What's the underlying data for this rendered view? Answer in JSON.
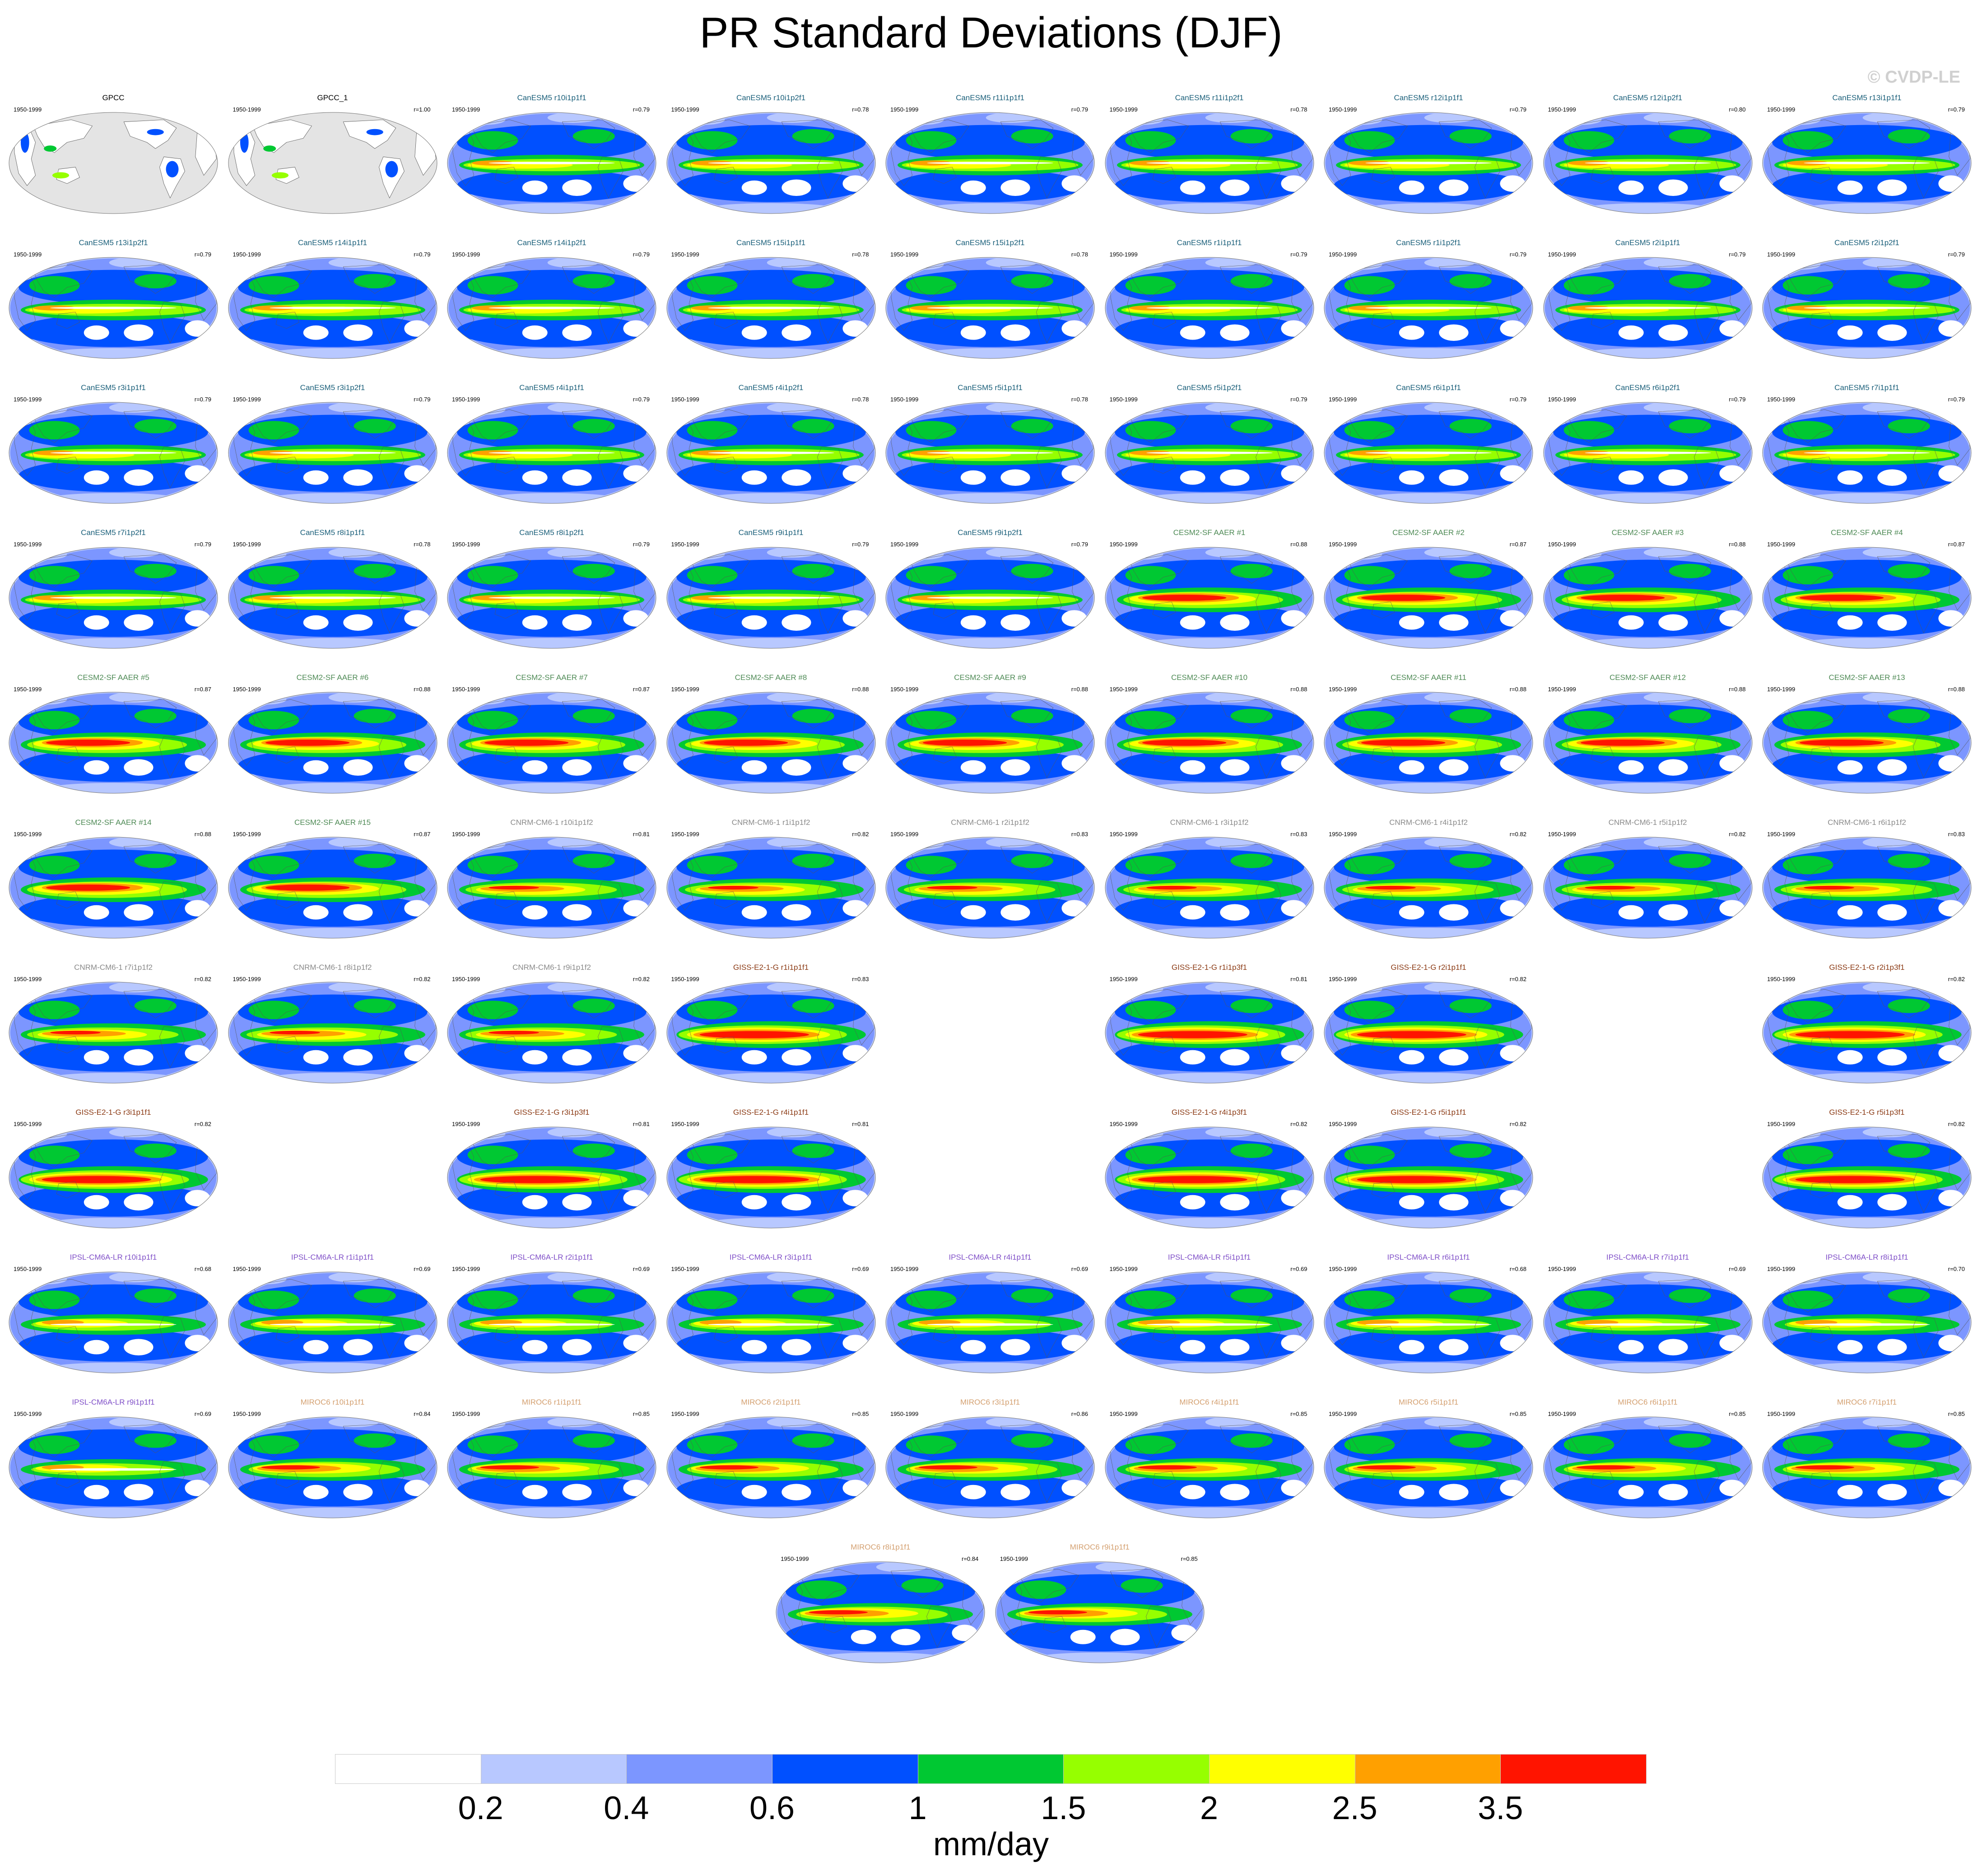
{
  "page": {
    "title": "PR Standard Deviations (DJF)",
    "watermark": "© CVDP-LE"
  },
  "colors": {
    "fill_scale": [
      "#ffffff",
      "#b8c8ff",
      "#7c96ff",
      "#0050ff",
      "#00c832",
      "#96ff00",
      "#ffff00",
      "#ffa000",
      "#ff1400"
    ],
    "land_obs": "#e4e4e4",
    "coast": "#555555",
    "model_families": {
      "GPCC": "#000000",
      "CanESM5": "#1a5f7a",
      "CESM2-SF AAER": "#4e8a55",
      "CNRM-CM6-1": "#8a8a8a",
      "GISS-E2-1-G": "#8b3a14",
      "IPSL-CM6A-LR": "#8050c8",
      "MIROC6": "#d4a070"
    }
  },
  "chart_data": {
    "type": "map-grid",
    "period": "1950-1999",
    "panels": [
      {
        "title": "GPCC",
        "family": "GPCC",
        "period": "1950-1999",
        "r": "",
        "row": 0,
        "col": 0,
        "pattern": "obs"
      },
      {
        "title": "GPCC_1",
        "family": "GPCC",
        "period": "1950-1999",
        "r": "r=1.00",
        "row": 0,
        "col": 1,
        "pattern": "obs"
      },
      {
        "title": "CanESM5 r10i1p1f1",
        "family": "CanESM5",
        "period": "1950-1999",
        "r": "r=0.79",
        "row": 0,
        "col": 2,
        "pattern": "can"
      },
      {
        "title": "CanESM5 r10i1p2f1",
        "family": "CanESM5",
        "period": "1950-1999",
        "r": "r=0.78",
        "row": 0,
        "col": 3,
        "pattern": "can"
      },
      {
        "title": "CanESM5 r11i1p1f1",
        "family": "CanESM5",
        "period": "1950-1999",
        "r": "r=0.79",
        "row": 0,
        "col": 4,
        "pattern": "can"
      },
      {
        "title": "CanESM5 r11i1p2f1",
        "family": "CanESM5",
        "period": "1950-1999",
        "r": "r=0.78",
        "row": 0,
        "col": 5,
        "pattern": "can"
      },
      {
        "title": "CanESM5 r12i1p1f1",
        "family": "CanESM5",
        "period": "1950-1999",
        "r": "r=0.79",
        "row": 0,
        "col": 6,
        "pattern": "can"
      },
      {
        "title": "CanESM5 r12i1p2f1",
        "family": "CanESM5",
        "period": "1950-1999",
        "r": "r=0.80",
        "row": 0,
        "col": 7,
        "pattern": "can"
      },
      {
        "title": "CanESM5 r13i1p1f1",
        "family": "CanESM5",
        "period": "1950-1999",
        "r": "r=0.79",
        "row": 0,
        "col": 8,
        "pattern": "can"
      },
      {
        "title": "CanESM5 r13i1p2f1",
        "family": "CanESM5",
        "period": "1950-1999",
        "r": "r=0.79",
        "row": 1,
        "col": 0,
        "pattern": "can"
      },
      {
        "title": "CanESM5 r14i1p1f1",
        "family": "CanESM5",
        "period": "1950-1999",
        "r": "r=0.79",
        "row": 1,
        "col": 1,
        "pattern": "can"
      },
      {
        "title": "CanESM5 r14i1p2f1",
        "family": "CanESM5",
        "period": "1950-1999",
        "r": "r=0.79",
        "row": 1,
        "col": 2,
        "pattern": "can"
      },
      {
        "title": "CanESM5 r15i1p1f1",
        "family": "CanESM5",
        "period": "1950-1999",
        "r": "r=0.78",
        "row": 1,
        "col": 3,
        "pattern": "can"
      },
      {
        "title": "CanESM5 r15i1p2f1",
        "family": "CanESM5",
        "period": "1950-1999",
        "r": "r=0.78",
        "row": 1,
        "col": 4,
        "pattern": "can"
      },
      {
        "title": "CanESM5 r1i1p1f1",
        "family": "CanESM5",
        "period": "1950-1999",
        "r": "r=0.79",
        "row": 1,
        "col": 5,
        "pattern": "can"
      },
      {
        "title": "CanESM5 r1i1p2f1",
        "family": "CanESM5",
        "period": "1950-1999",
        "r": "r=0.79",
        "row": 1,
        "col": 6,
        "pattern": "can"
      },
      {
        "title": "CanESM5 r2i1p1f1",
        "family": "CanESM5",
        "period": "1950-1999",
        "r": "r=0.79",
        "row": 1,
        "col": 7,
        "pattern": "can"
      },
      {
        "title": "CanESM5 r2i1p2f1",
        "family": "CanESM5",
        "period": "1950-1999",
        "r": "r=0.79",
        "row": 1,
        "col": 8,
        "pattern": "can"
      },
      {
        "title": "CanESM5 r3i1p1f1",
        "family": "CanESM5",
        "period": "1950-1999",
        "r": "r=0.79",
        "row": 2,
        "col": 0,
        "pattern": "can"
      },
      {
        "title": "CanESM5 r3i1p2f1",
        "family": "CanESM5",
        "period": "1950-1999",
        "r": "r=0.79",
        "row": 2,
        "col": 1,
        "pattern": "can"
      },
      {
        "title": "CanESM5 r4i1p1f1",
        "family": "CanESM5",
        "period": "1950-1999",
        "r": "r=0.79",
        "row": 2,
        "col": 2,
        "pattern": "can"
      },
      {
        "title": "CanESM5 r4i1p2f1",
        "family": "CanESM5",
        "period": "1950-1999",
        "r": "r=0.78",
        "row": 2,
        "col": 3,
        "pattern": "can"
      },
      {
        "title": "CanESM5 r5i1p1f1",
        "family": "CanESM5",
        "period": "1950-1999",
        "r": "r=0.78",
        "row": 2,
        "col": 4,
        "pattern": "can"
      },
      {
        "title": "CanESM5 r5i1p2f1",
        "family": "CanESM5",
        "period": "1950-1999",
        "r": "r=0.79",
        "row": 2,
        "col": 5,
        "pattern": "can"
      },
      {
        "title": "CanESM5 r6i1p1f1",
        "family": "CanESM5",
        "period": "1950-1999",
        "r": "r=0.79",
        "row": 2,
        "col": 6,
        "pattern": "can"
      },
      {
        "title": "CanESM5 r6i1p2f1",
        "family": "CanESM5",
        "period": "1950-1999",
        "r": "r=0.79",
        "row": 2,
        "col": 7,
        "pattern": "can"
      },
      {
        "title": "CanESM5 r7i1p1f1",
        "family": "CanESM5",
        "period": "1950-1999",
        "r": "r=0.79",
        "row": 2,
        "col": 8,
        "pattern": "can"
      },
      {
        "title": "CanESM5 r7i1p2f1",
        "family": "CanESM5",
        "period": "1950-1999",
        "r": "r=0.79",
        "row": 3,
        "col": 0,
        "pattern": "can"
      },
      {
        "title": "CanESM5 r8i1p1f1",
        "family": "CanESM5",
        "period": "1950-1999",
        "r": "r=0.78",
        "row": 3,
        "col": 1,
        "pattern": "can"
      },
      {
        "title": "CanESM5 r8i1p2f1",
        "family": "CanESM5",
        "period": "1950-1999",
        "r": "r=0.79",
        "row": 3,
        "col": 2,
        "pattern": "can"
      },
      {
        "title": "CanESM5 r9i1p1f1",
        "family": "CanESM5",
        "period": "1950-1999",
        "r": "r=0.79",
        "row": 3,
        "col": 3,
        "pattern": "can"
      },
      {
        "title": "CanESM5 r9i1p2f1",
        "family": "CanESM5",
        "period": "1950-1999",
        "r": "r=0.79",
        "row": 3,
        "col": 4,
        "pattern": "can"
      },
      {
        "title": "CESM2-SF AAER #1",
        "family": "CESM2-SF AAER",
        "period": "1950-1999",
        "r": "r=0.88",
        "row": 3,
        "col": 5,
        "pattern": "cesm"
      },
      {
        "title": "CESM2-SF AAER #2",
        "family": "CESM2-SF AAER",
        "period": "1950-1999",
        "r": "r=0.87",
        "row": 3,
        "col": 6,
        "pattern": "cesm"
      },
      {
        "title": "CESM2-SF AAER #3",
        "family": "CESM2-SF AAER",
        "period": "1950-1999",
        "r": "r=0.88",
        "row": 3,
        "col": 7,
        "pattern": "cesm"
      },
      {
        "title": "CESM2-SF AAER #4",
        "family": "CESM2-SF AAER",
        "period": "1950-1999",
        "r": "r=0.87",
        "row": 3,
        "col": 8,
        "pattern": "cesm"
      },
      {
        "title": "CESM2-SF AAER #5",
        "family": "CESM2-SF AAER",
        "period": "1950-1999",
        "r": "r=0.87",
        "row": 4,
        "col": 0,
        "pattern": "cesm"
      },
      {
        "title": "CESM2-SF AAER #6",
        "family": "CESM2-SF AAER",
        "period": "1950-1999",
        "r": "r=0.88",
        "row": 4,
        "col": 1,
        "pattern": "cesm"
      },
      {
        "title": "CESM2-SF AAER #7",
        "family": "CESM2-SF AAER",
        "period": "1950-1999",
        "r": "r=0.87",
        "row": 4,
        "col": 2,
        "pattern": "cesm"
      },
      {
        "title": "CESM2-SF AAER #8",
        "family": "CESM2-SF AAER",
        "period": "1950-1999",
        "r": "r=0.88",
        "row": 4,
        "col": 3,
        "pattern": "cesm"
      },
      {
        "title": "CESM2-SF AAER #9",
        "family": "CESM2-SF AAER",
        "period": "1950-1999",
        "r": "r=0.88",
        "row": 4,
        "col": 4,
        "pattern": "cesm"
      },
      {
        "title": "CESM2-SF AAER #10",
        "family": "CESM2-SF AAER",
        "period": "1950-1999",
        "r": "r=0.88",
        "row": 4,
        "col": 5,
        "pattern": "cesm"
      },
      {
        "title": "CESM2-SF AAER #11",
        "family": "CESM2-SF AAER",
        "period": "1950-1999",
        "r": "r=0.88",
        "row": 4,
        "col": 6,
        "pattern": "cesm"
      },
      {
        "title": "CESM2-SF AAER #12",
        "family": "CESM2-SF AAER",
        "period": "1950-1999",
        "r": "r=0.88",
        "row": 4,
        "col": 7,
        "pattern": "cesm"
      },
      {
        "title": "CESM2-SF AAER #13",
        "family": "CESM2-SF AAER",
        "period": "1950-1999",
        "r": "r=0.88",
        "row": 4,
        "col": 8,
        "pattern": "cesm"
      },
      {
        "title": "CESM2-SF AAER #14",
        "family": "CESM2-SF AAER",
        "period": "1950-1999",
        "r": "r=0.88",
        "row": 5,
        "col": 0,
        "pattern": "cesm"
      },
      {
        "title": "CESM2-SF AAER #15",
        "family": "CESM2-SF AAER",
        "period": "1950-1999",
        "r": "r=0.87",
        "row": 5,
        "col": 1,
        "pattern": "cesm"
      },
      {
        "title": "CNRM-CM6-1 r10i1p1f2",
        "family": "CNRM-CM6-1",
        "period": "1950-1999",
        "r": "r=0.81",
        "row": 5,
        "col": 2,
        "pattern": "cnrm"
      },
      {
        "title": "CNRM-CM6-1 r1i1p1f2",
        "family": "CNRM-CM6-1",
        "period": "1950-1999",
        "r": "r=0.82",
        "row": 5,
        "col": 3,
        "pattern": "cnrm"
      },
      {
        "title": "CNRM-CM6-1 r2i1p1f2",
        "family": "CNRM-CM6-1",
        "period": "1950-1999",
        "r": "r=0.83",
        "row": 5,
        "col": 4,
        "pattern": "cnrm"
      },
      {
        "title": "CNRM-CM6-1 r3i1p1f2",
        "family": "CNRM-CM6-1",
        "period": "1950-1999",
        "r": "r=0.83",
        "row": 5,
        "col": 5,
        "pattern": "cnrm"
      },
      {
        "title": "CNRM-CM6-1 r4i1p1f2",
        "family": "CNRM-CM6-1",
        "period": "1950-1999",
        "r": "r=0.82",
        "row": 5,
        "col": 6,
        "pattern": "cnrm"
      },
      {
        "title": "CNRM-CM6-1 r5i1p1f2",
        "family": "CNRM-CM6-1",
        "period": "1950-1999",
        "r": "r=0.82",
        "row": 5,
        "col": 7,
        "pattern": "cnrm"
      },
      {
        "title": "CNRM-CM6-1 r6i1p1f2",
        "family": "CNRM-CM6-1",
        "period": "1950-1999",
        "r": "r=0.83",
        "row": 5,
        "col": 8,
        "pattern": "cnrm"
      },
      {
        "title": "CNRM-CM6-1 r7i1p1f2",
        "family": "CNRM-CM6-1",
        "period": "1950-1999",
        "r": "r=0.82",
        "row": 6,
        "col": 0,
        "pattern": "cnrm"
      },
      {
        "title": "CNRM-CM6-1 r8i1p1f2",
        "family": "CNRM-CM6-1",
        "period": "1950-1999",
        "r": "r=0.82",
        "row": 6,
        "col": 1,
        "pattern": "cnrm"
      },
      {
        "title": "CNRM-CM6-1 r9i1p1f2",
        "family": "CNRM-CM6-1",
        "period": "1950-1999",
        "r": "r=0.82",
        "row": 6,
        "col": 2,
        "pattern": "cnrm"
      },
      {
        "title": "GISS-E2-1-G r1i1p1f1",
        "family": "GISS-E2-1-G",
        "period": "1950-1999",
        "r": "r=0.83",
        "row": 6,
        "col": 3,
        "pattern": "giss"
      },
      {
        "title": "GISS-E2-1-G r1i1p3f1",
        "family": "GISS-E2-1-G",
        "period": "1950-1999",
        "r": "r=0.81",
        "row": 6,
        "col": 5,
        "pattern": "giss"
      },
      {
        "title": "GISS-E2-1-G r2i1p1f1",
        "family": "GISS-E2-1-G",
        "period": "1950-1999",
        "r": "r=0.82",
        "row": 6,
        "col": 6,
        "pattern": "giss"
      },
      {
        "title": "GISS-E2-1-G r2i1p3f1",
        "family": "GISS-E2-1-G",
        "period": "1950-1999",
        "r": "r=0.82",
        "row": 6,
        "col": 8,
        "pattern": "giss"
      },
      {
        "title": "GISS-E2-1-G r3i1p1f1",
        "family": "GISS-E2-1-G",
        "period": "1950-1999",
        "r": "r=0.82",
        "row": 7,
        "col": 0,
        "pattern": "giss"
      },
      {
        "title": "GISS-E2-1-G r3i1p3f1",
        "family": "GISS-E2-1-G",
        "period": "1950-1999",
        "r": "r=0.81",
        "row": 7,
        "col": 2,
        "pattern": "giss"
      },
      {
        "title": "GISS-E2-1-G r4i1p1f1",
        "family": "GISS-E2-1-G",
        "period": "1950-1999",
        "r": "r=0.81",
        "row": 7,
        "col": 3,
        "pattern": "giss"
      },
      {
        "title": "GISS-E2-1-G r4i1p3f1",
        "family": "GISS-E2-1-G",
        "period": "1950-1999",
        "r": "r=0.82",
        "row": 7,
        "col": 5,
        "pattern": "giss"
      },
      {
        "title": "GISS-E2-1-G r5i1p1f1",
        "family": "GISS-E2-1-G",
        "period": "1950-1999",
        "r": "r=0.82",
        "row": 7,
        "col": 6,
        "pattern": "giss"
      },
      {
        "title": "GISS-E2-1-G r5i1p3f1",
        "family": "GISS-E2-1-G",
        "period": "1950-1999",
        "r": "r=0.82",
        "row": 7,
        "col": 8,
        "pattern": "giss"
      },
      {
        "title": "IPSL-CM6A-LR r10i1p1f1",
        "family": "IPSL-CM6A-LR",
        "period": "1950-1999",
        "r": "r=0.68",
        "row": 8,
        "col": 0,
        "pattern": "ipsl"
      },
      {
        "title": "IPSL-CM6A-LR r1i1p1f1",
        "family": "IPSL-CM6A-LR",
        "period": "1950-1999",
        "r": "r=0.69",
        "row": 8,
        "col": 1,
        "pattern": "ipsl"
      },
      {
        "title": "IPSL-CM6A-LR r2i1p1f1",
        "family": "IPSL-CM6A-LR",
        "period": "1950-1999",
        "r": "r=0.69",
        "row": 8,
        "col": 2,
        "pattern": "ipsl"
      },
      {
        "title": "IPSL-CM6A-LR r3i1p1f1",
        "family": "IPSL-CM6A-LR",
        "period": "1950-1999",
        "r": "r=0.69",
        "row": 8,
        "col": 3,
        "pattern": "ipsl"
      },
      {
        "title": "IPSL-CM6A-LR r4i1p1f1",
        "family": "IPSL-CM6A-LR",
        "period": "1950-1999",
        "r": "r=0.69",
        "row": 8,
        "col": 4,
        "pattern": "ipsl"
      },
      {
        "title": "IPSL-CM6A-LR r5i1p1f1",
        "family": "IPSL-CM6A-LR",
        "period": "1950-1999",
        "r": "r=0.69",
        "row": 8,
        "col": 5,
        "pattern": "ipsl"
      },
      {
        "title": "IPSL-CM6A-LR r6i1p1f1",
        "family": "IPSL-CM6A-LR",
        "period": "1950-1999",
        "r": "r=0.68",
        "row": 8,
        "col": 6,
        "pattern": "ipsl"
      },
      {
        "title": "IPSL-CM6A-LR r7i1p1f1",
        "family": "IPSL-CM6A-LR",
        "period": "1950-1999",
        "r": "r=0.69",
        "row": 8,
        "col": 7,
        "pattern": "ipsl"
      },
      {
        "title": "IPSL-CM6A-LR r8i1p1f1",
        "family": "IPSL-CM6A-LR",
        "period": "1950-1999",
        "r": "r=0.70",
        "row": 8,
        "col": 8,
        "pattern": "ipsl"
      },
      {
        "title": "IPSL-CM6A-LR r9i1p1f1",
        "family": "IPSL-CM6A-LR",
        "period": "1950-1999",
        "r": "r=0.69",
        "row": 9,
        "col": 0,
        "pattern": "ipsl"
      },
      {
        "title": "MIROC6 r10i1p1f1",
        "family": "MIROC6",
        "period": "1950-1999",
        "r": "r=0.84",
        "row": 9,
        "col": 1,
        "pattern": "miroc"
      },
      {
        "title": "MIROC6 r1i1p1f1",
        "family": "MIROC6",
        "period": "1950-1999",
        "r": "r=0.85",
        "row": 9,
        "col": 2,
        "pattern": "miroc"
      },
      {
        "title": "MIROC6 r2i1p1f1",
        "family": "MIROC6",
        "period": "1950-1999",
        "r": "r=0.85",
        "row": 9,
        "col": 3,
        "pattern": "miroc"
      },
      {
        "title": "MIROC6 r3i1p1f1",
        "family": "MIROC6",
        "period": "1950-1999",
        "r": "r=0.86",
        "row": 9,
        "col": 4,
        "pattern": "miroc"
      },
      {
        "title": "MIROC6 r4i1p1f1",
        "family": "MIROC6",
        "period": "1950-1999",
        "r": "r=0.85",
        "row": 9,
        "col": 5,
        "pattern": "miroc"
      },
      {
        "title": "MIROC6 r5i1p1f1",
        "family": "MIROC6",
        "period": "1950-1999",
        "r": "r=0.85",
        "row": 9,
        "col": 6,
        "pattern": "miroc"
      },
      {
        "title": "MIROC6 r6i1p1f1",
        "family": "MIROC6",
        "period": "1950-1999",
        "r": "r=0.85",
        "row": 9,
        "col": 7,
        "pattern": "miroc"
      },
      {
        "title": "MIROC6 r7i1p1f1",
        "family": "MIROC6",
        "period": "1950-1999",
        "r": "r=0.85",
        "row": 9,
        "col": 8,
        "pattern": "miroc"
      },
      {
        "title": "MIROC6 r8i1p1f1",
        "family": "MIROC6",
        "period": "1950-1999",
        "r": "r=0.84",
        "row": 10,
        "col": 3.5,
        "pattern": "miroc"
      },
      {
        "title": "MIROC6 r9i1p1f1",
        "family": "MIROC6",
        "period": "1950-1999",
        "r": "r=0.85",
        "row": 10,
        "col": 4.5,
        "pattern": "miroc"
      }
    ],
    "colorbar": {
      "ticks": [
        "0.2",
        "0.4",
        "0.6",
        "1",
        "1.5",
        "2",
        "2.5",
        "3.5"
      ],
      "unit": "mm/day"
    }
  }
}
